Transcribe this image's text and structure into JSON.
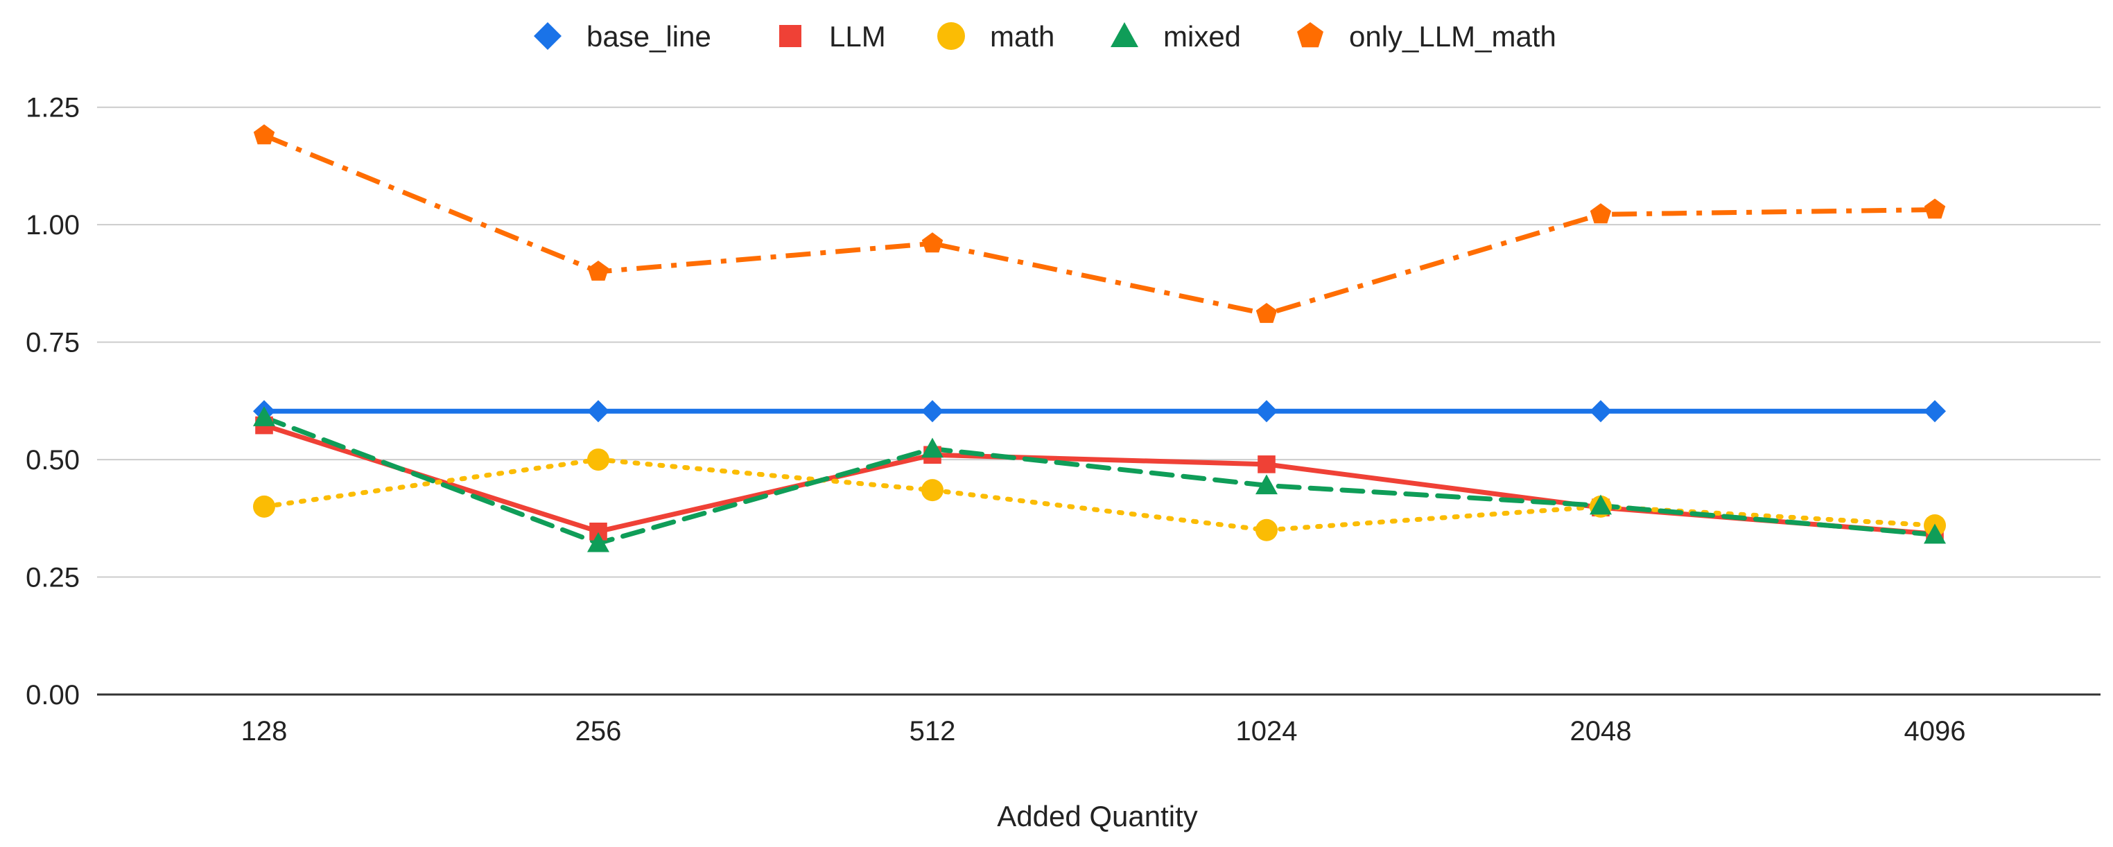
{
  "chart_data": {
    "type": "line",
    "title": "",
    "xlabel": "Added Quantity",
    "ylabel": "",
    "categories": [
      "128",
      "256",
      "512",
      "1024",
      "2048",
      "4096"
    ],
    "ylim": [
      0,
      1.375
    ],
    "yticks": [
      0,
      0.25,
      0.5,
      0.75,
      1.0,
      1.25
    ],
    "ytick_labels": [
      "0.00",
      "0.25",
      "0.50",
      "0.75",
      "1.00",
      "1.25"
    ],
    "grid": true,
    "legend_position": "top-center",
    "series": [
      {
        "name": "base_line",
        "values": [
          0.603,
          0.603,
          0.603,
          0.603,
          0.603,
          0.603
        ],
        "color": "#1a73e8",
        "marker": "diamond",
        "dash": "solid"
      },
      {
        "name": "LLM",
        "values": [
          0.573,
          0.347,
          0.51,
          0.49,
          0.398,
          0.342
        ],
        "color": "#ef4136",
        "marker": "square",
        "dash": "solid"
      },
      {
        "name": "math",
        "values": [
          0.4,
          0.5,
          0.435,
          0.35,
          0.4,
          0.36
        ],
        "color": "#fbbc04",
        "marker": "circle",
        "dash": "dotted"
      },
      {
        "name": "mixed",
        "values": [
          0.59,
          0.322,
          0.523,
          0.445,
          0.402,
          0.34
        ],
        "color": "#0f9d58",
        "marker": "triangle",
        "dash": "dashed"
      },
      {
        "name": "only_LLM_math",
        "values": [
          1.19,
          0.9,
          0.96,
          0.81,
          1.022,
          1.032
        ],
        "color": "#ff6d01",
        "marker": "pentagon",
        "dash": "dashdot"
      }
    ]
  }
}
